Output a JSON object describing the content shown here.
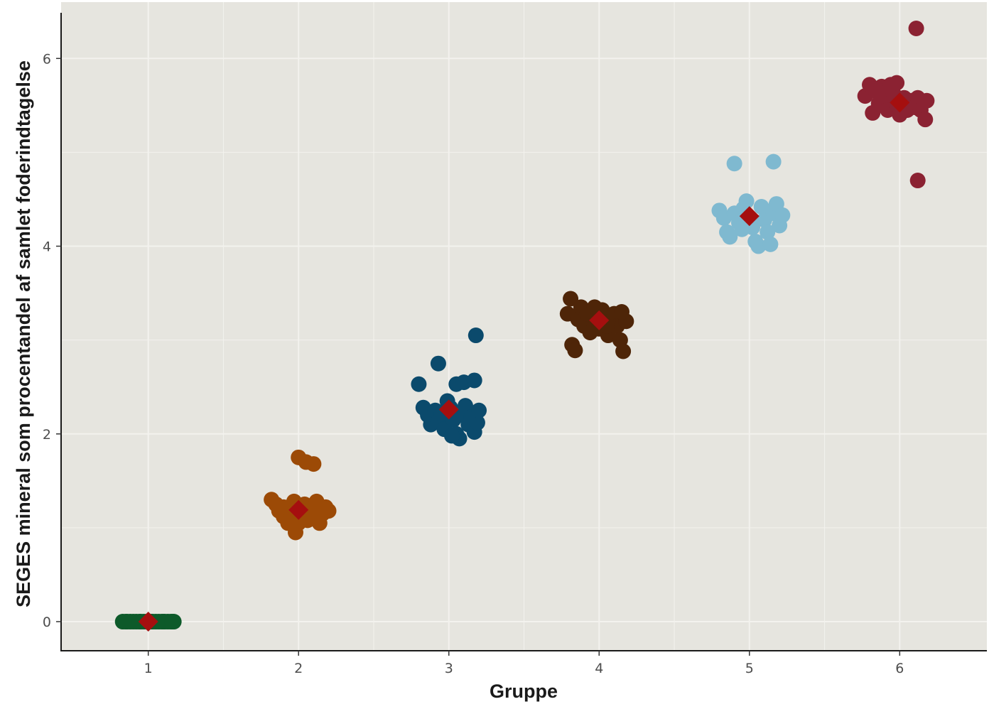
{
  "chart_data": {
    "type": "scatter",
    "title": "",
    "xlabel": "Gruppe",
    "ylabel": "SEGES mineral som procentandel af samlet foderindtagelse",
    "x_ticks": [
      "1",
      "2",
      "3",
      "4",
      "5",
      "6"
    ],
    "y_ticks": [
      "0",
      "2",
      "4",
      "6"
    ],
    "xlim": [
      0.42,
      6.58
    ],
    "ylim": [
      -0.31,
      6.6
    ],
    "grid": true,
    "legend": "none",
    "colors": {
      "panel_background": "#e6e5df",
      "grid": "#f3f2ee",
      "axis_line": "#1a1a1a",
      "mean_marker": "#a50f0f"
    },
    "series": [
      {
        "group": 1,
        "color": "#0d5a2a",
        "points": [
          [
            0.83,
            0.0
          ],
          [
            0.85,
            0.0
          ],
          [
            0.88,
            0.0
          ],
          [
            0.9,
            0.0
          ],
          [
            0.92,
            0.0
          ],
          [
            0.95,
            0.0
          ],
          [
            0.97,
            0.0
          ],
          [
            0.99,
            0.0
          ],
          [
            1.01,
            0.0
          ],
          [
            1.03,
            0.0
          ],
          [
            1.05,
            0.0
          ],
          [
            1.07,
            0.0
          ],
          [
            1.09,
            0.0
          ],
          [
            1.11,
            0.0
          ],
          [
            1.13,
            0.0
          ],
          [
            1.15,
            0.0
          ],
          [
            1.17,
            0.0
          ],
          [
            0.86,
            0.0
          ],
          [
            0.94,
            0.0
          ],
          [
            1.02,
            0.0
          ],
          [
            1.1,
            0.0
          ],
          [
            1.16,
            0.0
          ]
        ],
        "mean": 1e-09
      },
      {
        "group": 2,
        "color": "#9c4a06",
        "points": [
          [
            2.0,
            1.75
          ],
          [
            2.05,
            1.7
          ],
          [
            2.1,
            1.68
          ],
          [
            1.82,
            1.3
          ],
          [
            1.85,
            1.25
          ],
          [
            1.87,
            1.18
          ],
          [
            1.9,
            1.12
          ],
          [
            1.93,
            1.05
          ],
          [
            1.95,
            1.22
          ],
          [
            1.97,
            1.28
          ],
          [
            1.98,
            0.95
          ],
          [
            2.02,
            1.15
          ],
          [
            2.04,
            1.25
          ],
          [
            2.06,
            1.08
          ],
          [
            2.08,
            1.2
          ],
          [
            2.1,
            1.1
          ],
          [
            2.12,
            1.28
          ],
          [
            2.14,
            1.05
          ],
          [
            2.16,
            1.15
          ],
          [
            2.18,
            1.22
          ],
          [
            2.2,
            1.18
          ],
          [
            1.9,
            1.22
          ],
          [
            2.0,
            1.05
          ],
          [
            2.08,
            1.15
          ],
          [
            1.95,
            1.1
          ]
        ],
        "mean": 1.19
      },
      {
        "group": 3,
        "color": "#0b4a6c",
        "points": [
          [
            3.18,
            3.05
          ],
          [
            2.93,
            2.75
          ],
          [
            2.8,
            2.53
          ],
          [
            3.05,
            2.53
          ],
          [
            3.1,
            2.55
          ],
          [
            3.17,
            2.57
          ],
          [
            2.83,
            2.28
          ],
          [
            2.86,
            2.2
          ],
          [
            2.88,
            2.1
          ],
          [
            2.91,
            2.25
          ],
          [
            2.93,
            2.13
          ],
          [
            2.97,
            2.05
          ],
          [
            2.99,
            2.35
          ],
          [
            3.01,
            2.28
          ],
          [
            3.03,
            2.15
          ],
          [
            3.05,
            2.0
          ],
          [
            3.07,
            1.95
          ],
          [
            3.09,
            2.2
          ],
          [
            3.11,
            2.3
          ],
          [
            3.13,
            2.1
          ],
          [
            3.15,
            2.18
          ],
          [
            3.17,
            2.02
          ],
          [
            3.19,
            2.12
          ],
          [
            3.2,
            2.25
          ],
          [
            2.95,
            2.22
          ],
          [
            3.02,
            1.98
          ]
        ],
        "mean": 2.26
      },
      {
        "group": 4,
        "color": "#4e2508",
        "points": [
          [
            3.81,
            3.44
          ],
          [
            3.79,
            3.28
          ],
          [
            3.82,
            2.95
          ],
          [
            3.84,
            2.89
          ],
          [
            3.86,
            3.22
          ],
          [
            3.88,
            3.35
          ],
          [
            3.9,
            3.15
          ],
          [
            3.92,
            3.28
          ],
          [
            3.94,
            3.08
          ],
          [
            3.96,
            3.3
          ],
          [
            3.98,
            3.2
          ],
          [
            4.0,
            3.12
          ],
          [
            4.02,
            3.32
          ],
          [
            4.04,
            3.25
          ],
          [
            4.06,
            3.05
          ],
          [
            4.08,
            3.18
          ],
          [
            4.1,
            3.28
          ],
          [
            4.12,
            3.15
          ],
          [
            4.14,
            3.0
          ],
          [
            4.16,
            3.22
          ],
          [
            4.18,
            3.2
          ],
          [
            4.16,
            2.88
          ],
          [
            4.15,
            3.3
          ],
          [
            3.97,
            3.35
          ],
          [
            4.05,
            3.15
          ]
        ],
        "mean": 3.21
      },
      {
        "group": 5,
        "color": "#7fb9d0",
        "points": [
          [
            4.9,
            4.88
          ],
          [
            5.16,
            4.9
          ],
          [
            4.8,
            4.38
          ],
          [
            4.83,
            4.3
          ],
          [
            4.85,
            4.15
          ],
          [
            4.87,
            4.1
          ],
          [
            4.9,
            4.35
          ],
          [
            4.93,
            4.25
          ],
          [
            4.96,
            4.4
          ],
          [
            4.98,
            4.48
          ],
          [
            5.0,
            4.3
          ],
          [
            5.02,
            4.2
          ],
          [
            5.04,
            4.05
          ],
          [
            5.06,
            4.0
          ],
          [
            5.08,
            4.42
          ],
          [
            5.1,
            4.28
          ],
          [
            5.12,
            4.15
          ],
          [
            5.14,
            4.02
          ],
          [
            5.16,
            4.35
          ],
          [
            5.18,
            4.45
          ],
          [
            5.2,
            4.22
          ],
          [
            5.22,
            4.33
          ],
          [
            4.95,
            4.18
          ]
        ],
        "mean": 4.32
      },
      {
        "group": 6,
        "color": "#8b2232",
        "points": [
          [
            6.11,
            6.32
          ],
          [
            6.12,
            4.7
          ],
          [
            5.77,
            5.6
          ],
          [
            5.8,
            5.72
          ],
          [
            5.82,
            5.42
          ],
          [
            5.84,
            5.65
          ],
          [
            5.86,
            5.52
          ],
          [
            5.88,
            5.7
          ],
          [
            5.9,
            5.58
          ],
          [
            5.92,
            5.45
          ],
          [
            5.94,
            5.72
          ],
          [
            5.96,
            5.62
          ],
          [
            5.98,
            5.5
          ],
          [
            6.0,
            5.4
          ],
          [
            6.03,
            5.58
          ],
          [
            6.05,
            5.45
          ],
          [
            6.08,
            5.55
          ],
          [
            6.1,
            5.48
          ],
          [
            6.12,
            5.58
          ],
          [
            6.14,
            5.45
          ],
          [
            6.17,
            5.35
          ],
          [
            6.18,
            5.55
          ],
          [
            5.98,
            5.74
          ]
        ],
        "mean": 5.53
      }
    ]
  }
}
